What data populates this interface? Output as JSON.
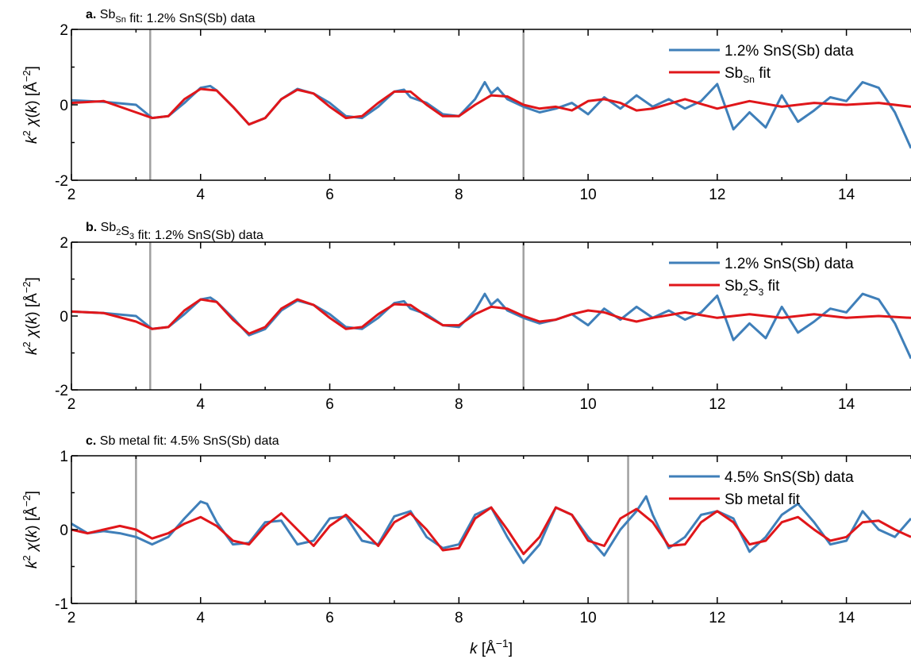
{
  "figure": {
    "xlabel": "k [Å⁻¹]"
  },
  "colors": {
    "data": "#3f7fb9",
    "fit": "#e0161a",
    "boundary": "#a0a0a0"
  },
  "chart_data": [
    {
      "type": "line",
      "panel": "a.",
      "title": "Sb<sub>Sn</sub> fit: 1.2% SnS(Sb) data",
      "xlabel": "k [Å⁻¹]",
      "ylabel": "k² χ(k) [Å⁻²]",
      "xlim": [
        2,
        15
      ],
      "ylim": [
        -2,
        2
      ],
      "xticks": [
        2,
        4,
        6,
        8,
        10,
        12,
        14
      ],
      "yticks": [
        -2,
        0,
        2
      ],
      "legend_position": "top-right",
      "fit_window": [
        3.22,
        9.0
      ],
      "series": [
        {
          "name": "1.2% SnS(Sb) data",
          "role": "data",
          "x": [
            2.0,
            2.5,
            3.0,
            3.25,
            3.5,
            3.75,
            4.0,
            4.15,
            4.25,
            4.5,
            4.75,
            5.0,
            5.25,
            5.5,
            5.75,
            6.0,
            6.25,
            6.5,
            6.75,
            7.0,
            7.15,
            7.25,
            7.5,
            7.75,
            8.0,
            8.25,
            8.4,
            8.5,
            8.6,
            8.75,
            9.0,
            9.25,
            9.5,
            9.75,
            10.0,
            10.25,
            10.5,
            10.75,
            11.0,
            11.25,
            11.5,
            11.75,
            12.0,
            12.25,
            12.5,
            12.75,
            13.0,
            13.25,
            13.5,
            13.75,
            14.0,
            14.25,
            14.5,
            14.75,
            15.0
          ],
          "y": [
            0.12,
            0.08,
            0.0,
            -0.35,
            -0.3,
            0.05,
            0.45,
            0.5,
            0.38,
            -0.05,
            -0.52,
            -0.35,
            0.15,
            0.42,
            0.3,
            0.05,
            -0.3,
            -0.35,
            -0.05,
            0.35,
            0.4,
            0.2,
            0.05,
            -0.25,
            -0.3,
            0.15,
            0.6,
            0.3,
            0.45,
            0.15,
            -0.05,
            -0.2,
            -0.1,
            0.05,
            -0.25,
            0.2,
            -0.1,
            0.25,
            -0.05,
            0.15,
            -0.1,
            0.1,
            0.55,
            -0.65,
            -0.2,
            -0.6,
            0.25,
            -0.45,
            -0.15,
            0.2,
            0.1,
            0.6,
            0.45,
            -0.2,
            -1.15
          ]
        },
        {
          "name": "Sb<tspan dy='6' font-size='12'>Sn</tspan><tspan dy='-6'> fit</tspan>",
          "role": "fit",
          "x": [
            2.0,
            2.5,
            3.0,
            3.25,
            3.5,
            3.75,
            4.0,
            4.25,
            4.5,
            4.75,
            5.0,
            5.25,
            5.5,
            5.75,
            6.0,
            6.25,
            6.5,
            6.75,
            7.0,
            7.25,
            7.5,
            7.75,
            8.0,
            8.25,
            8.5,
            8.75,
            9.0,
            9.25,
            9.5,
            9.75,
            10.0,
            10.25,
            10.5,
            10.75,
            11.0,
            11.5,
            12.0,
            12.5,
            13.0,
            13.5,
            14.0,
            14.5,
            15.0
          ],
          "y": [
            0.05,
            0.1,
            -0.2,
            -0.35,
            -0.3,
            0.15,
            0.42,
            0.38,
            -0.05,
            -0.52,
            -0.35,
            0.15,
            0.4,
            0.3,
            -0.05,
            -0.35,
            -0.3,
            0.05,
            0.35,
            0.35,
            0.0,
            -0.3,
            -0.3,
            0.0,
            0.25,
            0.22,
            0.0,
            -0.1,
            -0.05,
            -0.15,
            0.1,
            0.15,
            0.05,
            -0.15,
            -0.1,
            0.15,
            -0.1,
            0.1,
            -0.05,
            0.05,
            0.0,
            0.05,
            -0.05
          ]
        }
      ]
    },
    {
      "type": "line",
      "panel": "b.",
      "title": "Sb<sub>2</sub>S<sub>3</sub> fit: 1.2% SnS(Sb) data",
      "xlabel": "k [Å⁻¹]",
      "ylabel": "k² χ(k) [Å⁻²]",
      "xlim": [
        2,
        15
      ],
      "ylim": [
        -2,
        2
      ],
      "xticks": [
        2,
        4,
        6,
        8,
        10,
        12,
        14
      ],
      "yticks": [
        -2,
        0,
        2
      ],
      "legend_position": "top-right",
      "fit_window": [
        3.22,
        9.0
      ],
      "series": [
        {
          "name": "1.2% SnS(Sb) data",
          "role": "data",
          "x": [
            2.0,
            2.5,
            3.0,
            3.25,
            3.5,
            3.75,
            4.0,
            4.15,
            4.25,
            4.5,
            4.75,
            5.0,
            5.25,
            5.5,
            5.75,
            6.0,
            6.25,
            6.5,
            6.75,
            7.0,
            7.15,
            7.25,
            7.5,
            7.75,
            8.0,
            8.25,
            8.4,
            8.5,
            8.6,
            8.75,
            9.0,
            9.25,
            9.5,
            9.75,
            10.0,
            10.25,
            10.5,
            10.75,
            11.0,
            11.25,
            11.5,
            11.75,
            12.0,
            12.25,
            12.5,
            12.75,
            13.0,
            13.25,
            13.5,
            13.75,
            14.0,
            14.25,
            14.5,
            14.75,
            15.0
          ],
          "y": [
            0.12,
            0.08,
            0.0,
            -0.35,
            -0.3,
            0.05,
            0.45,
            0.5,
            0.38,
            -0.05,
            -0.52,
            -0.35,
            0.15,
            0.42,
            0.3,
            0.05,
            -0.3,
            -0.35,
            -0.05,
            0.35,
            0.4,
            0.2,
            0.05,
            -0.25,
            -0.3,
            0.15,
            0.6,
            0.3,
            0.45,
            0.15,
            -0.05,
            -0.2,
            -0.1,
            0.05,
            -0.25,
            0.2,
            -0.1,
            0.25,
            -0.05,
            0.15,
            -0.1,
            0.1,
            0.55,
            -0.65,
            -0.2,
            -0.6,
            0.25,
            -0.45,
            -0.15,
            0.2,
            0.1,
            0.6,
            0.45,
            -0.2,
            -1.15
          ]
        },
        {
          "name": "Sb<tspan dy='6' font-size='12'>2</tspan><tspan dy='-6'>S</tspan><tspan dy='6' font-size='12'>3</tspan><tspan dy='-6'> fit</tspan>",
          "role": "fit",
          "x": [
            2.0,
            2.5,
            3.0,
            3.25,
            3.5,
            3.75,
            4.0,
            4.25,
            4.5,
            4.75,
            5.0,
            5.25,
            5.5,
            5.75,
            6.0,
            6.25,
            6.5,
            6.75,
            7.0,
            7.25,
            7.5,
            7.75,
            8.0,
            8.25,
            8.5,
            8.75,
            9.0,
            9.25,
            9.5,
            9.75,
            10.0,
            10.25,
            10.5,
            10.75,
            11.0,
            11.5,
            12.0,
            12.5,
            13.0,
            13.5,
            14.0,
            14.5,
            15.0
          ],
          "y": [
            0.12,
            0.08,
            -0.15,
            -0.35,
            -0.3,
            0.15,
            0.45,
            0.38,
            -0.1,
            -0.48,
            -0.3,
            0.2,
            0.45,
            0.3,
            -0.05,
            -0.35,
            -0.3,
            0.05,
            0.32,
            0.3,
            0.0,
            -0.25,
            -0.25,
            0.05,
            0.25,
            0.2,
            0.0,
            -0.15,
            -0.1,
            0.05,
            0.15,
            0.1,
            -0.05,
            -0.15,
            -0.05,
            0.1,
            -0.05,
            0.05,
            -0.05,
            0.05,
            -0.05,
            0.0,
            -0.05
          ]
        }
      ]
    },
    {
      "type": "line",
      "panel": "c.",
      "title": "Sb metal fit: 4.5% SnS(Sb) data",
      "xlabel": "k [Å⁻¹]",
      "ylabel": "k² χ(k) [Å⁻²]",
      "xlim": [
        2,
        15
      ],
      "ylim": [
        -1,
        1
      ],
      "xticks": [
        2,
        4,
        6,
        8,
        10,
        12,
        14
      ],
      "yticks": [
        -1,
        0,
        1
      ],
      "legend_position": "top-right",
      "fit_window": [
        3.0,
        10.62
      ],
      "series": [
        {
          "name": "4.5% SnS(Sb) data",
          "role": "data",
          "x": [
            2.0,
            2.25,
            2.5,
            2.75,
            3.0,
            3.25,
            3.5,
            3.75,
            4.0,
            4.1,
            4.25,
            4.5,
            4.75,
            5.0,
            5.25,
            5.5,
            5.75,
            6.0,
            6.25,
            6.5,
            6.75,
            7.0,
            7.25,
            7.5,
            7.75,
            8.0,
            8.25,
            8.5,
            8.75,
            9.0,
            9.25,
            9.5,
            9.75,
            10.0,
            10.25,
            10.5,
            10.75,
            10.9,
            11.0,
            11.25,
            11.5,
            11.75,
            12.0,
            12.25,
            12.5,
            12.75,
            13.0,
            13.25,
            13.5,
            13.75,
            14.0,
            14.25,
            14.5,
            14.75,
            15.0
          ],
          "y": [
            0.08,
            -0.05,
            -0.02,
            -0.05,
            -0.1,
            -0.2,
            -0.1,
            0.15,
            0.38,
            0.35,
            0.1,
            -0.2,
            -0.18,
            0.1,
            0.12,
            -0.2,
            -0.15,
            0.15,
            0.18,
            -0.15,
            -0.2,
            0.18,
            0.25,
            -0.1,
            -0.25,
            -0.2,
            0.2,
            0.3,
            -0.1,
            -0.45,
            -0.2,
            0.3,
            0.2,
            -0.1,
            -0.35,
            0.0,
            0.25,
            0.45,
            0.2,
            -0.25,
            -0.1,
            0.2,
            0.25,
            0.15,
            -0.3,
            -0.1,
            0.2,
            0.35,
            0.1,
            -0.2,
            -0.15,
            0.25,
            0.0,
            -0.1,
            0.15
          ]
        },
        {
          "name": "Sb metal fit",
          "role": "fit",
          "x": [
            2.0,
            2.25,
            2.5,
            2.75,
            3.0,
            3.25,
            3.5,
            3.75,
            4.0,
            4.25,
            4.5,
            4.75,
            5.0,
            5.25,
            5.5,
            5.75,
            6.0,
            6.25,
            6.5,
            6.75,
            7.0,
            7.25,
            7.5,
            7.75,
            8.0,
            8.25,
            8.5,
            8.75,
            9.0,
            9.25,
            9.5,
            9.75,
            10.0,
            10.25,
            10.5,
            10.75,
            11.0,
            11.25,
            11.5,
            11.75,
            12.0,
            12.25,
            12.5,
            12.75,
            13.0,
            13.25,
            13.5,
            13.75,
            14.0,
            14.25,
            14.5,
            14.75,
            15.0
          ],
          "y": [
            0.0,
            -0.05,
            0.0,
            0.05,
            0.0,
            -0.12,
            -0.05,
            0.08,
            0.17,
            0.05,
            -0.15,
            -0.2,
            0.05,
            0.22,
            0.0,
            -0.22,
            0.05,
            0.2,
            0.0,
            -0.22,
            0.1,
            0.22,
            0.0,
            -0.28,
            -0.25,
            0.15,
            0.3,
            0.0,
            -0.33,
            -0.1,
            0.3,
            0.2,
            -0.15,
            -0.22,
            0.15,
            0.28,
            0.1,
            -0.22,
            -0.2,
            0.1,
            0.25,
            0.1,
            -0.2,
            -0.15,
            0.1,
            0.17,
            0.0,
            -0.15,
            -0.1,
            0.1,
            0.12,
            0.0,
            -0.1
          ]
        }
      ]
    }
  ]
}
